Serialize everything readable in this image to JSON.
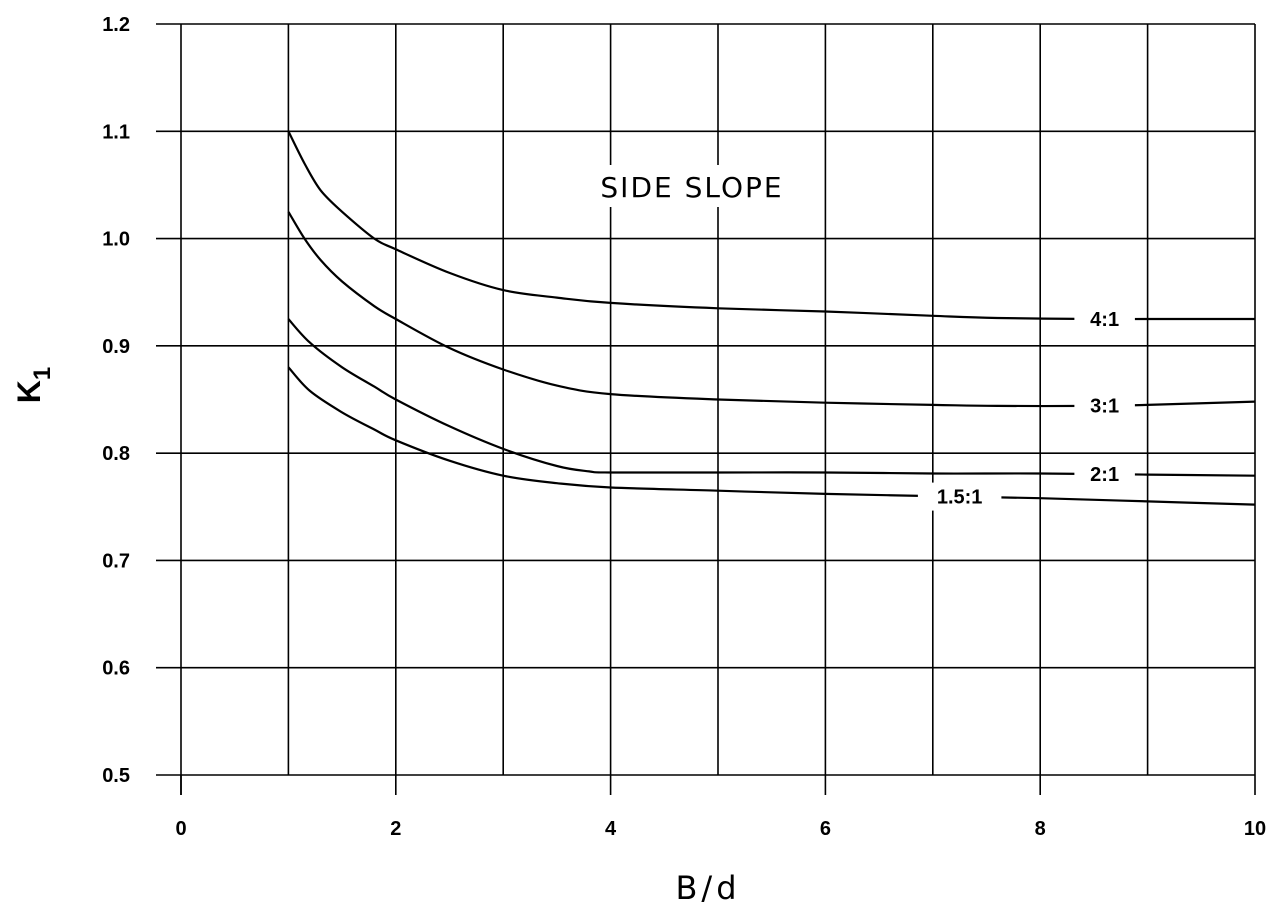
{
  "chart_data": {
    "type": "line",
    "title": "",
    "annotation": "SIDE SLOPE",
    "xlabel": "B/d",
    "ylabel": {
      "main": "K",
      "sub": "1"
    },
    "xlim": [
      0,
      10
    ],
    "ylim": [
      0.5,
      1.2
    ],
    "grid": true,
    "x_ticks": [
      0,
      2,
      4,
      6,
      8,
      10
    ],
    "x_tick_labels": [
      "0",
      "2",
      "4",
      "6",
      "8",
      "10"
    ],
    "y_ticks": [
      0.5,
      0.6,
      0.7,
      0.8,
      0.9,
      1.0,
      1.1,
      1.2
    ],
    "y_tick_labels": [
      "0.5",
      "0.6",
      "0.7",
      "0.8",
      "0.9",
      "1.0",
      "1.1",
      "1.2"
    ],
    "series": [
      {
        "name": "4:1",
        "label_x": 8.6,
        "x": [
          1.0,
          1.15,
          1.3,
          1.5,
          1.8,
          2.0,
          2.5,
          3.0,
          3.5,
          4.0,
          5.0,
          6.0,
          7.0,
          7.6,
          8.5,
          9.0,
          10.0
        ],
        "y": [
          1.1,
          1.07,
          1.045,
          1.025,
          1.0,
          0.99,
          0.968,
          0.952,
          0.945,
          0.94,
          0.935,
          0.932,
          0.928,
          0.926,
          0.925,
          0.925,
          0.925
        ]
      },
      {
        "name": "3:1",
        "label_x": 8.6,
        "x": [
          1.0,
          1.15,
          1.3,
          1.5,
          1.8,
          2.0,
          2.5,
          3.0,
          3.5,
          4.0,
          5.0,
          6.0,
          7.0,
          7.6,
          8.5,
          9.0,
          10.0
        ],
        "y": [
          1.025,
          1.0,
          0.98,
          0.96,
          0.937,
          0.925,
          0.898,
          0.878,
          0.863,
          0.855,
          0.85,
          0.847,
          0.845,
          0.844,
          0.844,
          0.845,
          0.848
        ]
      },
      {
        "name": "2:1",
        "label_x": 8.6,
        "x": [
          1.0,
          1.2,
          1.5,
          1.8,
          2.0,
          2.5,
          3.0,
          3.5,
          3.8,
          4.0,
          5.0,
          6.0,
          7.0,
          8.0,
          9.0,
          10.0
        ],
        "y": [
          0.925,
          0.903,
          0.88,
          0.862,
          0.85,
          0.825,
          0.804,
          0.788,
          0.783,
          0.782,
          0.782,
          0.782,
          0.781,
          0.781,
          0.78,
          0.779
        ]
      },
      {
        "name": "1.5:1",
        "label_x": 7.25,
        "x": [
          1.0,
          1.2,
          1.5,
          1.8,
          2.0,
          2.5,
          3.0,
          3.5,
          4.0,
          5.0,
          6.0,
          7.0,
          8.0,
          9.0,
          10.0
        ],
        "y": [
          0.88,
          0.858,
          0.838,
          0.822,
          0.812,
          0.793,
          0.779,
          0.772,
          0.768,
          0.765,
          0.762,
          0.76,
          0.758,
          0.755,
          0.752
        ]
      }
    ]
  }
}
